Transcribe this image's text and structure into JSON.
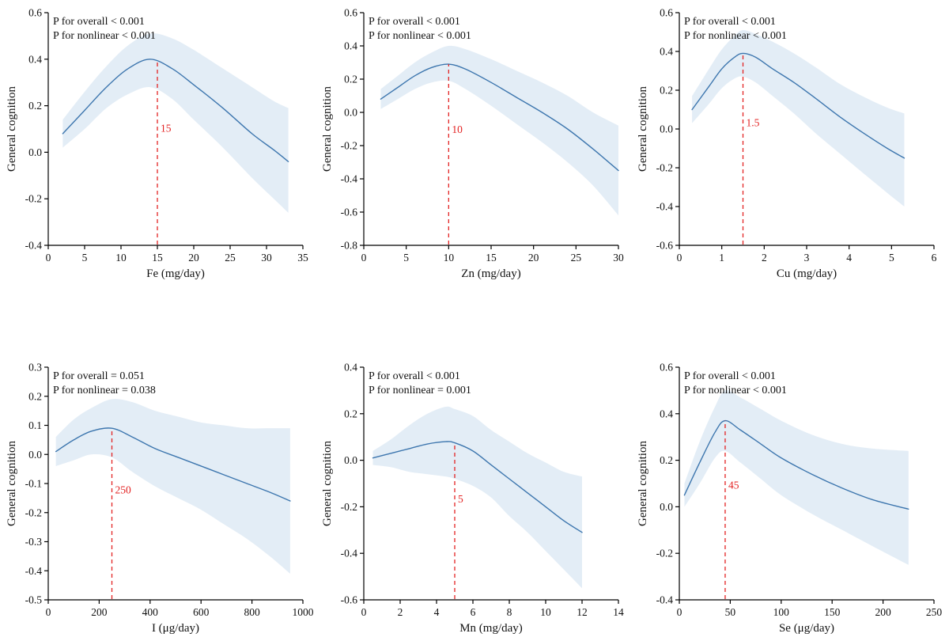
{
  "figure": {
    "background": "#ffffff"
  },
  "colors": {
    "line": "#3d76ae",
    "band": "#e3edf6",
    "reference": "#e32222",
    "axis": "#000000",
    "text": "#111111"
  },
  "chart_data": [
    {
      "id": "fe",
      "type": "line",
      "p_overall": "P for overall < 0.001",
      "p_nonlinear": "P for nonlinear < 0.001",
      "xlabel": "Fe (mg/day)",
      "ylabel": "General cognition",
      "xlim": [
        0,
        35
      ],
      "ylim": [
        -0.4,
        0.6
      ],
      "xticks": [
        0,
        5,
        10,
        15,
        20,
        25,
        30,
        35
      ],
      "yticks": [
        0.6,
        0.4,
        0.2,
        0.0,
        -0.2,
        -0.4
      ],
      "ytick_decimals": 1,
      "reference": {
        "x": 15,
        "label": "15"
      },
      "legend": null,
      "grid": false,
      "series": {
        "x": [
          2,
          5,
          8,
          11,
          14,
          17,
          20,
          24,
          28,
          31,
          33
        ],
        "y": [
          0.08,
          0.18,
          0.28,
          0.36,
          0.4,
          0.36,
          0.29,
          0.19,
          0.08,
          0.01,
          -0.04
        ],
        "lower": [
          0.02,
          0.1,
          0.19,
          0.25,
          0.28,
          0.23,
          0.14,
          0.02,
          -0.11,
          -0.2,
          -0.26
        ],
        "upper": [
          0.14,
          0.26,
          0.37,
          0.46,
          0.51,
          0.49,
          0.44,
          0.36,
          0.28,
          0.22,
          0.19
        ]
      }
    },
    {
      "id": "zn",
      "type": "line",
      "p_overall": "P for overall < 0.001",
      "p_nonlinear": "P for nonlinear < 0.001",
      "xlabel": "Zn (mg/day)",
      "ylabel": "General cognition",
      "xlim": [
        0,
        30
      ],
      "ylim": [
        -0.8,
        0.6
      ],
      "xticks": [
        0,
        5,
        10,
        15,
        20,
        25,
        30
      ],
      "yticks": [
        0.6,
        0.4,
        0.2,
        0.0,
        -0.2,
        -0.4,
        -0.6,
        -0.8
      ],
      "ytick_decimals": 1,
      "reference": {
        "x": 10,
        "label": "10"
      },
      "legend": null,
      "grid": false,
      "series": {
        "x": [
          2,
          4,
          6,
          8,
          10,
          12,
          15,
          18,
          21,
          24,
          27,
          30
        ],
        "y": [
          0.08,
          0.15,
          0.22,
          0.27,
          0.29,
          0.26,
          0.18,
          0.09,
          0.0,
          -0.1,
          -0.22,
          -0.35
        ],
        "lower": [
          0.02,
          0.08,
          0.14,
          0.18,
          0.19,
          0.14,
          0.04,
          -0.07,
          -0.18,
          -0.3,
          -0.44,
          -0.62
        ],
        "upper": [
          0.14,
          0.22,
          0.3,
          0.36,
          0.4,
          0.38,
          0.32,
          0.25,
          0.18,
          0.1,
          0.0,
          -0.08
        ]
      }
    },
    {
      "id": "cu",
      "type": "line",
      "p_overall": "P for overall < 0.001",
      "p_nonlinear": "P for nonlinear < 0.001",
      "xlabel": "Cu (mg/day)",
      "ylabel": "General cognition",
      "xlim": [
        0,
        6
      ],
      "ylim": [
        -0.6,
        0.6
      ],
      "xticks": [
        0,
        1,
        2,
        3,
        4,
        5,
        6
      ],
      "yticks": [
        0.6,
        0.4,
        0.2,
        0.0,
        -0.2,
        -0.4,
        -0.6
      ],
      "ytick_decimals": 1,
      "reference": {
        "x": 1.5,
        "label": "1.5"
      },
      "legend": null,
      "grid": false,
      "series": {
        "x": [
          0.3,
          0.7,
          1.0,
          1.3,
          1.5,
          1.8,
          2.2,
          2.7,
          3.2,
          3.8,
          4.4,
          4.9,
          5.3
        ],
        "y": [
          0.1,
          0.22,
          0.31,
          0.37,
          0.39,
          0.37,
          0.31,
          0.24,
          0.16,
          0.06,
          -0.03,
          -0.1,
          -0.15
        ],
        "lower": [
          0.03,
          0.13,
          0.21,
          0.26,
          0.27,
          0.24,
          0.17,
          0.08,
          -0.02,
          -0.13,
          -0.24,
          -0.33,
          -0.4
        ],
        "upper": [
          0.17,
          0.31,
          0.41,
          0.48,
          0.51,
          0.49,
          0.45,
          0.39,
          0.32,
          0.23,
          0.16,
          0.11,
          0.08
        ]
      }
    },
    {
      "id": "i",
      "type": "line",
      "p_overall": "P for overall = 0.051",
      "p_nonlinear": "P for nonlinear = 0.038",
      "xlabel": "I (μg/day)",
      "ylabel": "General cognition",
      "xlim": [
        0,
        1000
      ],
      "ylim": [
        -0.5,
        0.3
      ],
      "xticks": [
        0,
        200,
        400,
        600,
        800,
        1000
      ],
      "yticks": [
        0.3,
        0.2,
        0.1,
        0.0,
        -0.1,
        -0.2,
        -0.3,
        -0.4,
        -0.5
      ],
      "ytick_decimals": 1,
      "reference": {
        "x": 250,
        "label": "250"
      },
      "legend": null,
      "grid": false,
      "series": {
        "x": [
          30,
          100,
          170,
          250,
          330,
          420,
          510,
          600,
          690,
          780,
          870,
          950
        ],
        "y": [
          0.01,
          0.05,
          0.08,
          0.09,
          0.06,
          0.02,
          -0.01,
          -0.04,
          -0.07,
          -0.1,
          -0.13,
          -0.16
        ],
        "lower": [
          -0.04,
          -0.02,
          0.0,
          -0.01,
          -0.06,
          -0.11,
          -0.15,
          -0.19,
          -0.24,
          -0.29,
          -0.35,
          -0.41
        ],
        "upper": [
          0.06,
          0.12,
          0.16,
          0.19,
          0.18,
          0.15,
          0.13,
          0.11,
          0.1,
          0.09,
          0.09,
          0.09
        ]
      }
    },
    {
      "id": "mn",
      "type": "line",
      "p_overall": "P for overall < 0.001",
      "p_nonlinear": "P for nonlinear = 0.001",
      "xlabel": "Mn (mg/day)",
      "ylabel": "General cognition",
      "xlim": [
        0,
        14
      ],
      "ylim": [
        -0.6,
        0.4
      ],
      "xticks": [
        0,
        2,
        4,
        6,
        8,
        10,
        12,
        14
      ],
      "yticks": [
        0.4,
        0.2,
        0.0,
        -0.2,
        -0.4,
        -0.6
      ],
      "ytick_decimals": 1,
      "reference": {
        "x": 5,
        "label": "5"
      },
      "legend": null,
      "grid": false,
      "series": {
        "x": [
          0.5,
          1.5,
          2.5,
          3.5,
          4.5,
          5,
          6,
          7,
          8,
          9,
          10,
          11,
          12
        ],
        "y": [
          0.01,
          0.03,
          0.05,
          0.07,
          0.08,
          0.075,
          0.04,
          -0.02,
          -0.08,
          -0.14,
          -0.2,
          -0.26,
          -0.31
        ],
        "lower": [
          -0.02,
          -0.03,
          -0.05,
          -0.06,
          -0.07,
          -0.08,
          -0.11,
          -0.16,
          -0.24,
          -0.31,
          -0.39,
          -0.47,
          -0.55
        ],
        "upper": [
          0.04,
          0.09,
          0.15,
          0.2,
          0.23,
          0.22,
          0.19,
          0.13,
          0.08,
          0.03,
          -0.01,
          -0.05,
          -0.07
        ]
      }
    },
    {
      "id": "se",
      "type": "line",
      "p_overall": "P for overall < 0.001",
      "p_nonlinear": "P for nonlinear < 0.001",
      "xlabel": "Se (μg/day)",
      "ylabel": "General cognition",
      "xlim": [
        0,
        250
      ],
      "ylim": [
        -0.4,
        0.6
      ],
      "xticks": [
        0,
        50,
        100,
        150,
        200,
        250
      ],
      "yticks": [
        0.6,
        0.4,
        0.2,
        0.0,
        -0.2,
        -0.4
      ],
      "ytick_decimals": 1,
      "reference": {
        "x": 45,
        "label": "45"
      },
      "legend": null,
      "grid": false,
      "series": {
        "x": [
          5,
          20,
          35,
          45,
          60,
          80,
          100,
          130,
          160,
          190,
          225
        ],
        "y": [
          0.05,
          0.19,
          0.32,
          0.37,
          0.33,
          0.27,
          0.21,
          0.14,
          0.08,
          0.03,
          -0.01
        ],
        "lower": [
          0.0,
          0.1,
          0.21,
          0.24,
          0.19,
          0.12,
          0.05,
          -0.03,
          -0.1,
          -0.17,
          -0.25
        ],
        "upper": [
          0.1,
          0.28,
          0.43,
          0.5,
          0.47,
          0.42,
          0.37,
          0.31,
          0.27,
          0.25,
          0.24
        ]
      }
    }
  ]
}
